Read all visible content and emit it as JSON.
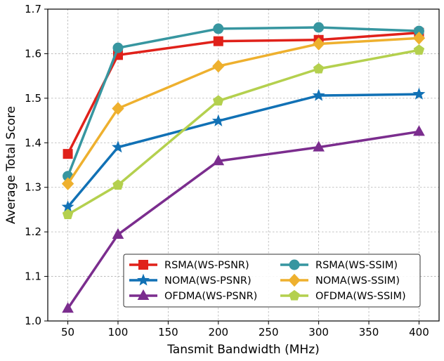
{
  "chart_data": {
    "type": "line",
    "title": "",
    "xlabel": "Tansmit Bandwidth (MHz)",
    "ylabel": "Average Total Score",
    "x": [
      50,
      100,
      200,
      300,
      400
    ],
    "xlim": [
      30,
      420
    ],
    "ylim": [
      1.0,
      1.7
    ],
    "xticks": [
      50,
      100,
      150,
      200,
      250,
      300,
      350,
      400
    ],
    "yticks": [
      1.0,
      1.1,
      1.2,
      1.3,
      1.4,
      1.5,
      1.6,
      1.7
    ],
    "grid": true,
    "legend_position": "bottom-right",
    "legend_columns": 2,
    "series": [
      {
        "name": "RSMA(WS-PSNR)",
        "color": "#e0211a",
        "marker": "square",
        "values": [
          1.375,
          1.597,
          1.628,
          1.631,
          1.647
        ]
      },
      {
        "name": "NOMA(WS-PSNR)",
        "color": "#1171b5",
        "marker": "star",
        "values": [
          1.256,
          1.39,
          1.449,
          1.506,
          1.509
        ]
      },
      {
        "name": "OFDMA(WS-PSNR)",
        "color": "#7b2d8e",
        "marker": "triangle",
        "values": [
          1.028,
          1.194,
          1.359,
          1.39,
          1.425
        ]
      },
      {
        "name": "RSMA(WS-SSIM)",
        "color": "#3796a0",
        "marker": "circle",
        "values": [
          1.325,
          1.613,
          1.656,
          1.659,
          1.651
        ]
      },
      {
        "name": "NOMA(WS-SSIM)",
        "color": "#eeb02e",
        "marker": "diamond",
        "values": [
          1.308,
          1.477,
          1.572,
          1.622,
          1.635
        ]
      },
      {
        "name": "OFDMA(WS-SSIM)",
        "color": "#b4d04e",
        "marker": "pentagon",
        "values": [
          1.239,
          1.305,
          1.494,
          1.566,
          1.608
        ]
      }
    ]
  }
}
